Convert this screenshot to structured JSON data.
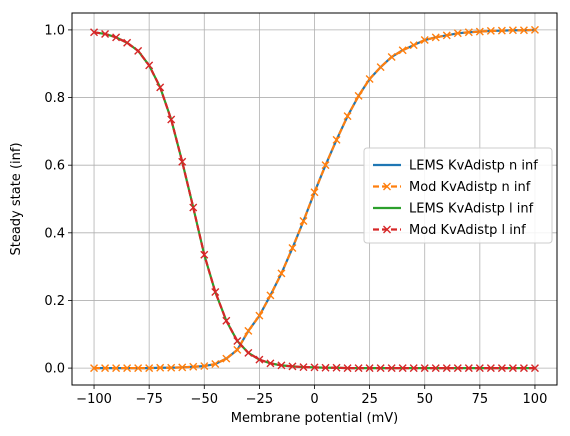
{
  "chart_data": {
    "type": "line",
    "xlabel": "Membrane potential (mV)",
    "ylabel": "Steady state (inf)",
    "xlim": [
      -110,
      110
    ],
    "ylim": [
      -0.05,
      1.05
    ],
    "xticks": [
      -100,
      -75,
      -50,
      -25,
      0,
      25,
      50,
      75,
      100
    ],
    "xtick_labels": [
      "−100",
      "−75",
      "−50",
      "−25",
      "0",
      "25",
      "50",
      "75",
      "100"
    ],
    "yticks": [
      0.0,
      0.2,
      0.4,
      0.6,
      0.8,
      1.0
    ],
    "ytick_labels": [
      "0.0",
      "0.2",
      "0.4",
      "0.6",
      "0.8",
      "1.0"
    ],
    "grid": true,
    "legend_position": "center-right",
    "series": [
      {
        "name": "LEMS KvAdistp n inf",
        "color": "#1f77b4",
        "style": "solid",
        "marker": "none",
        "x": [
          -100,
          -95,
          -90,
          -85,
          -80,
          -75,
          -70,
          -65,
          -60,
          -55,
          -50,
          -45,
          -40,
          -35,
          -30,
          -25,
          -20,
          -15,
          -10,
          -5,
          0,
          5,
          10,
          15,
          20,
          25,
          30,
          35,
          40,
          45,
          50,
          55,
          60,
          65,
          70,
          75,
          80,
          85,
          90,
          95,
          100
        ],
        "y": [
          0.0,
          0.0,
          0.0,
          0.0,
          0.0,
          0.0,
          0.001,
          0.001,
          0.002,
          0.004,
          0.006,
          0.012,
          0.028,
          0.054,
          0.11,
          0.155,
          0.215,
          0.28,
          0.355,
          0.435,
          0.52,
          0.6,
          0.675,
          0.745,
          0.805,
          0.855,
          0.89,
          0.92,
          0.94,
          0.955,
          0.97,
          0.978,
          0.984,
          0.99,
          0.993,
          0.995,
          0.997,
          0.998,
          0.999,
          0.999,
          1.0
        ]
      },
      {
        "name": "Mod KvAdistp n inf",
        "color": "#ff7f0e",
        "style": "dashed",
        "marker": "x",
        "x": [
          -100,
          -95,
          -90,
          -85,
          -80,
          -75,
          -70,
          -65,
          -60,
          -55,
          -50,
          -45,
          -40,
          -35,
          -30,
          -25,
          -20,
          -15,
          -10,
          -5,
          0,
          5,
          10,
          15,
          20,
          25,
          30,
          35,
          40,
          45,
          50,
          55,
          60,
          65,
          70,
          75,
          80,
          85,
          90,
          95,
          100
        ],
        "y": [
          0.0,
          0.0,
          0.0,
          0.0,
          0.0,
          0.0,
          0.001,
          0.001,
          0.002,
          0.004,
          0.006,
          0.012,
          0.028,
          0.054,
          0.11,
          0.155,
          0.215,
          0.28,
          0.355,
          0.435,
          0.52,
          0.6,
          0.675,
          0.745,
          0.805,
          0.855,
          0.89,
          0.92,
          0.94,
          0.955,
          0.97,
          0.978,
          0.984,
          0.99,
          0.993,
          0.995,
          0.997,
          0.998,
          0.999,
          0.999,
          1.0
        ]
      },
      {
        "name": "LEMS KvAdistp l inf",
        "color": "#2ca02c",
        "style": "solid",
        "marker": "none",
        "x": [
          -100,
          -95,
          -90,
          -85,
          -80,
          -75,
          -70,
          -65,
          -60,
          -55,
          -50,
          -45,
          -40,
          -35,
          -30,
          -25,
          -20,
          -15,
          -10,
          -5,
          0,
          5,
          10,
          15,
          20,
          25,
          30,
          35,
          40,
          45,
          50,
          55,
          60,
          65,
          70,
          75,
          80,
          85,
          90,
          95,
          100
        ],
        "y": [
          0.993,
          0.988,
          0.978,
          0.962,
          0.938,
          0.895,
          0.83,
          0.735,
          0.61,
          0.475,
          0.335,
          0.225,
          0.14,
          0.08,
          0.045,
          0.025,
          0.014,
          0.008,
          0.005,
          0.003,
          0.002,
          0.001,
          0.001,
          0.0,
          0.0,
          0.0,
          0.0,
          0.0,
          0.0,
          0.0,
          0.0,
          0.0,
          0.0,
          0.0,
          0.0,
          0.0,
          0.0,
          0.0,
          0.0,
          0.0,
          0.0
        ]
      },
      {
        "name": "Mod KvAdistp l inf",
        "color": "#d62728",
        "style": "dashed",
        "marker": "x",
        "x": [
          -100,
          -95,
          -90,
          -85,
          -80,
          -75,
          -70,
          -65,
          -60,
          -55,
          -50,
          -45,
          -40,
          -35,
          -30,
          -25,
          -20,
          -15,
          -10,
          -5,
          0,
          5,
          10,
          15,
          20,
          25,
          30,
          35,
          40,
          45,
          50,
          55,
          60,
          65,
          70,
          75,
          80,
          85,
          90,
          95,
          100
        ],
        "y": [
          0.993,
          0.988,
          0.978,
          0.962,
          0.938,
          0.895,
          0.83,
          0.735,
          0.61,
          0.475,
          0.335,
          0.225,
          0.14,
          0.08,
          0.045,
          0.025,
          0.014,
          0.008,
          0.005,
          0.003,
          0.002,
          0.001,
          0.001,
          0.0,
          0.0,
          0.0,
          0.0,
          0.0,
          0.0,
          0.0,
          0.0,
          0.0,
          0.0,
          0.0,
          0.0,
          0.0,
          0.0,
          0.0,
          0.0,
          0.0,
          0.0
        ]
      }
    ]
  }
}
